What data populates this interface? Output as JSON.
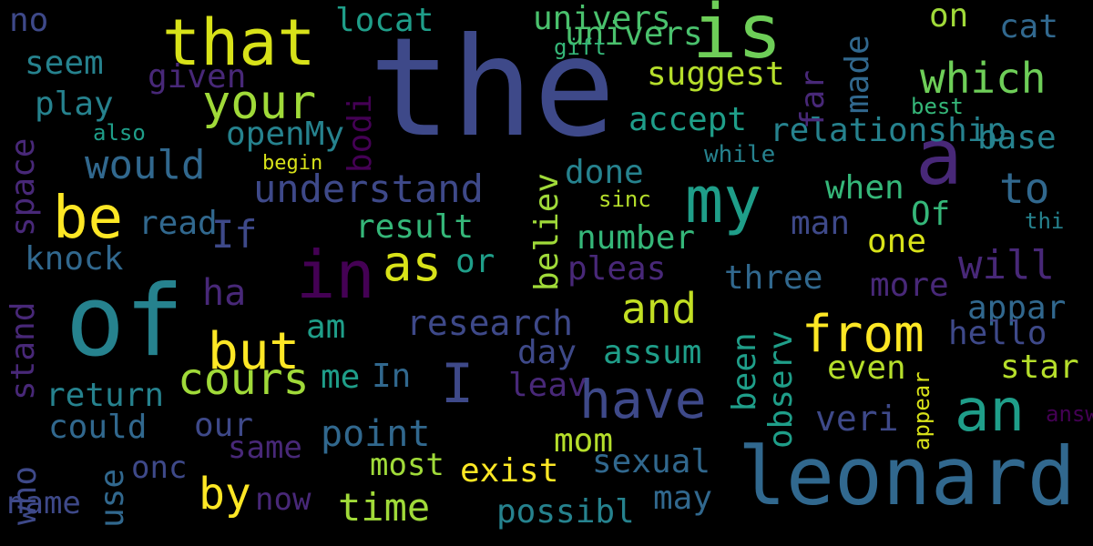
{
  "colors": {
    "background": "#000000",
    "palette": [
      "#440154",
      "#482878",
      "#3e4989",
      "#31688e",
      "#26828e",
      "#1f9e89",
      "#35b779",
      "#6ece58",
      "#b5de2b",
      "#fde725"
    ]
  },
  "words": [
    {
      "text": "the",
      "color": "#3e4989"
    },
    {
      "text": "of",
      "color": "#26828e"
    },
    {
      "text": "leonard",
      "color": "#31688e"
    },
    {
      "text": "is",
      "color": "#6ece58"
    },
    {
      "text": "a",
      "color": "#482878"
    },
    {
      "text": "that",
      "color": "#d8e219"
    },
    {
      "text": "my",
      "color": "#1f9e89"
    },
    {
      "text": "in",
      "color": "#440154"
    },
    {
      "text": "be",
      "color": "#fde725"
    },
    {
      "text": "have",
      "color": "#3e4989"
    },
    {
      "text": "an",
      "color": "#1f9e89"
    },
    {
      "text": "as",
      "color": "#d8e219"
    },
    {
      "text": "but",
      "color": "#fde725"
    },
    {
      "text": "from",
      "color": "#fde725"
    },
    {
      "text": "I",
      "color": "#3e4989"
    },
    {
      "text": "cours",
      "color": "#a0da39"
    },
    {
      "text": "your",
      "color": "#a0da39"
    },
    {
      "text": "which",
      "color": "#6ece58"
    },
    {
      "text": "and",
      "color": "#c2df23"
    },
    {
      "text": "by",
      "color": "#fde725"
    },
    {
      "text": "to",
      "color": "#31688e"
    },
    {
      "text": "on",
      "color": "#a0da39"
    },
    {
      "text": "would",
      "color": "#31688e"
    },
    {
      "text": "understand",
      "color": "#3e4989"
    },
    {
      "text": "time",
      "color": "#a0da39"
    },
    {
      "text": "point",
      "color": "#31688e"
    },
    {
      "text": "will",
      "color": "#482878"
    },
    {
      "text": "ha",
      "color": "#482878"
    },
    {
      "text": "univers",
      "color": "#4ac16d"
    },
    {
      "text": "research",
      "color": "#3e4989"
    },
    {
      "text": "veri",
      "color": "#3e4989"
    },
    {
      "text": "cat",
      "color": "#31688e"
    },
    {
      "text": "more",
      "color": "#482878"
    },
    {
      "text": "suggest",
      "color": "#b5de2b"
    },
    {
      "text": "three",
      "color": "#31688e"
    },
    {
      "text": "locat",
      "color": "#1f9e89"
    },
    {
      "text": "univers",
      "color": "#4ac16d"
    },
    {
      "text": "accept",
      "color": "#1f9e89"
    },
    {
      "text": "result",
      "color": "#35b779"
    },
    {
      "text": "number",
      "color": "#35b779"
    },
    {
      "text": "sexual",
      "color": "#31688e"
    },
    {
      "text": "possibl",
      "color": "#26828e"
    },
    {
      "text": "exist",
      "color": "#fde725"
    },
    {
      "text": "appar",
      "color": "#31688e"
    },
    {
      "text": "hello",
      "color": "#3e4989"
    },
    {
      "text": "star",
      "color": "#b5de2b"
    },
    {
      "text": "return",
      "color": "#26828e"
    },
    {
      "text": "could",
      "color": "#31688e"
    },
    {
      "text": "our",
      "color": "#3e4989"
    },
    {
      "text": "most",
      "color": "#a0da39"
    },
    {
      "text": "same",
      "color": "#482878"
    },
    {
      "text": "now",
      "color": "#482878"
    },
    {
      "text": "name",
      "color": "#3e4989"
    },
    {
      "text": "onc",
      "color": "#3e4989"
    },
    {
      "text": "If",
      "color": "#3e4989"
    },
    {
      "text": "pleas",
      "color": "#482878"
    },
    {
      "text": "may",
      "color": "#31688e"
    },
    {
      "text": "Of",
      "color": "#35b779"
    },
    {
      "text": "when",
      "color": "#35b779"
    },
    {
      "text": "done",
      "color": "#26828e"
    },
    {
      "text": "man",
      "color": "#3e4989"
    },
    {
      "text": "even",
      "color": "#b5de2b"
    },
    {
      "text": "assum",
      "color": "#1f9e89"
    },
    {
      "text": "mom",
      "color": "#b5de2b"
    },
    {
      "text": "leav",
      "color": "#482878"
    },
    {
      "text": "one",
      "color": "#d8e219"
    },
    {
      "text": "base",
      "color": "#26828e"
    },
    {
      "text": "am",
      "color": "#1f9e89"
    },
    {
      "text": "In",
      "color": "#31688e"
    },
    {
      "text": "me",
      "color": "#1f9e89"
    },
    {
      "text": "or",
      "color": "#1f9e89"
    },
    {
      "text": "day",
      "color": "#3e4989"
    },
    {
      "text": "read",
      "color": "#31688e"
    },
    {
      "text": "knock",
      "color": "#31688e"
    },
    {
      "text": "play",
      "color": "#26828e"
    },
    {
      "text": "seem",
      "color": "#26828e"
    },
    {
      "text": "no",
      "color": "#3e4989"
    },
    {
      "text": "given",
      "color": "#482878"
    },
    {
      "text": "openMy",
      "color": "#26828e"
    },
    {
      "text": "relationship",
      "color": "#26828e"
    },
    {
      "text": "best",
      "color": "#35b779"
    },
    {
      "text": "also",
      "color": "#1f9e89"
    },
    {
      "text": "begin",
      "color": "#d8e219"
    },
    {
      "text": "while",
      "color": "#26828e"
    },
    {
      "text": "sinc",
      "color": "#b5de2b"
    },
    {
      "text": "gift",
      "color": "#35b779"
    },
    {
      "text": "thi",
      "color": "#26828e"
    },
    {
      "text": "answer",
      "color": "#440154"
    }
  ],
  "vertical_words": [
    {
      "text": "space",
      "color": "#482878"
    },
    {
      "text": "stand",
      "color": "#482878"
    },
    {
      "text": "who",
      "color": "#3e4989"
    },
    {
      "text": "use",
      "color": "#31688e"
    },
    {
      "text": "bodi",
      "color": "#440154"
    },
    {
      "text": "believ",
      "color": "#a0da39"
    },
    {
      "text": "been",
      "color": "#1f9e89"
    },
    {
      "text": "observ",
      "color": "#1f9e89"
    },
    {
      "text": "far",
      "color": "#482878"
    },
    {
      "text": "made",
      "color": "#31688e"
    },
    {
      "text": "appear",
      "color": "#d8e219"
    }
  ]
}
